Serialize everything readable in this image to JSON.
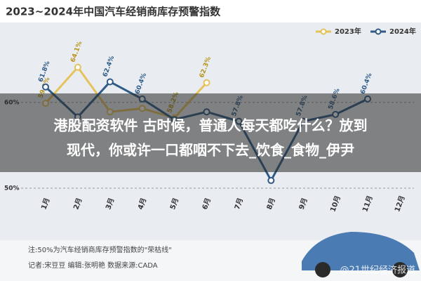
{
  "chart_data": {
    "type": "line",
    "title": "2023~2024年中国汽车经销商库存预警指数",
    "categories": [
      "1月",
      "2月",
      "3月",
      "4月",
      "5月",
      "6月",
      "7月",
      "8月",
      "9月",
      "10月",
      "11月",
      "12月"
    ],
    "series": [
      {
        "name": "2023年",
        "color": "#e6c25c",
        "values": [
          59.9,
          64.1,
          58.9,
          59.3,
          58.2,
          62.3,
          null,
          null,
          null,
          null,
          null,
          null
        ],
        "value_labels": [
          "59.9%",
          "64.1%",
          null,
          null,
          "58.2%",
          "62.3%",
          null,
          null,
          null,
          null,
          null,
          null
        ]
      },
      {
        "name": "2024年",
        "color": "#2f5b86",
        "values": [
          61.8,
          58.3,
          62.4,
          60.4,
          58.0,
          58.9,
          57.8,
          50.9,
          57.8,
          58.6,
          60.4,
          null
        ],
        "value_labels": [
          "61.8%",
          null,
          "62.4%",
          "60.4%",
          null,
          null,
          "57.8%",
          null,
          "57.8%",
          "58.6%",
          "60.4%",
          null
        ]
      }
    ],
    "ylim": [
      49.5,
      68.5
    ],
    "yticks": [
      {
        "value": 50,
        "label": "50%"
      },
      {
        "value": 60,
        "label": "60%"
      }
    ],
    "grid": true,
    "legend": "top-right",
    "notes": [
      "注:50%为汽车经销商库存预警指数的\"荣枯线\"",
      "记者:宋豆豆  编辑:张明艳  数据来源:CADA"
    ],
    "watermark": "@21世纪经济报道"
  },
  "overlay": {
    "lines": [
      "港股配资软件 古时候，普通人每天都吃什么？放到",
      "现代，你或许一口都咽不下去_饮食_食物_伊尹"
    ]
  }
}
